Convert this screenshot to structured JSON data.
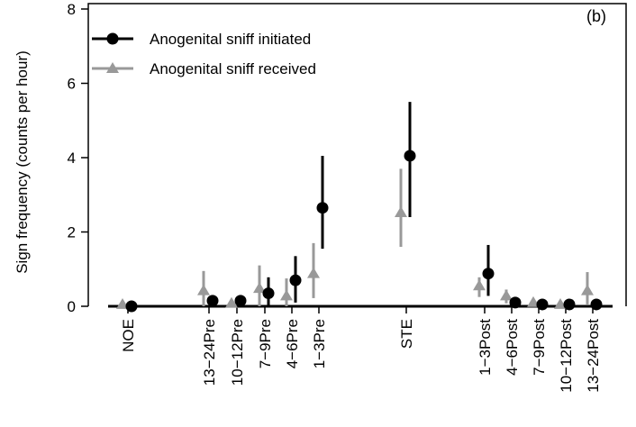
{
  "chart_data": {
    "type": "scatter",
    "panel_label": "(b)",
    "ylabel": "Sign frequency (counts per hour)",
    "xlabel": "",
    "ylim": [
      0,
      8
    ],
    "yticks": [
      "0",
      "2",
      "4",
      "6",
      "8"
    ],
    "grid": false,
    "legend_position": "top-left",
    "categories": [
      "NOE",
      "13−24Pre",
      "10−12Pre",
      "7−9Pre",
      "4−6Pre",
      "1−3Pre",
      "STE",
      "1−3Post",
      "4−6Post",
      "7−9Post",
      "10−12Post",
      "13−24Post"
    ],
    "series": [
      {
        "name": "Anogenital sniff initiated",
        "color": "#000000",
        "marker": "circle",
        "values": [
          0.0,
          0.15,
          0.15,
          0.35,
          0.7,
          2.65,
          4.05,
          0.88,
          0.1,
          0.05,
          0.05,
          0.05
        ],
        "lower": [
          0.0,
          0.05,
          0.02,
          0.0,
          0.1,
          1.55,
          2.4,
          0.28,
          0.0,
          0.0,
          0.0,
          0.0
        ],
        "upper": [
          0.0,
          0.25,
          0.3,
          0.78,
          1.35,
          4.05,
          5.5,
          1.65,
          0.2,
          0.1,
          0.1,
          0.1
        ]
      },
      {
        "name": "Anogenital sniff received",
        "color": "#999999",
        "marker": "triangle",
        "values": [
          0.05,
          0.42,
          0.08,
          0.48,
          0.28,
          0.88,
          2.52,
          0.55,
          0.28,
          0.1,
          0.05,
          0.42
        ],
        "lower": [
          0.0,
          0.0,
          0.0,
          0.0,
          0.0,
          0.22,
          1.6,
          0.25,
          0.08,
          0.0,
          0.0,
          0.05
        ],
        "upper": [
          0.1,
          0.95,
          0.15,
          1.1,
          0.75,
          1.7,
          3.7,
          0.78,
          0.45,
          0.2,
          0.12,
          0.92
        ]
      }
    ]
  }
}
